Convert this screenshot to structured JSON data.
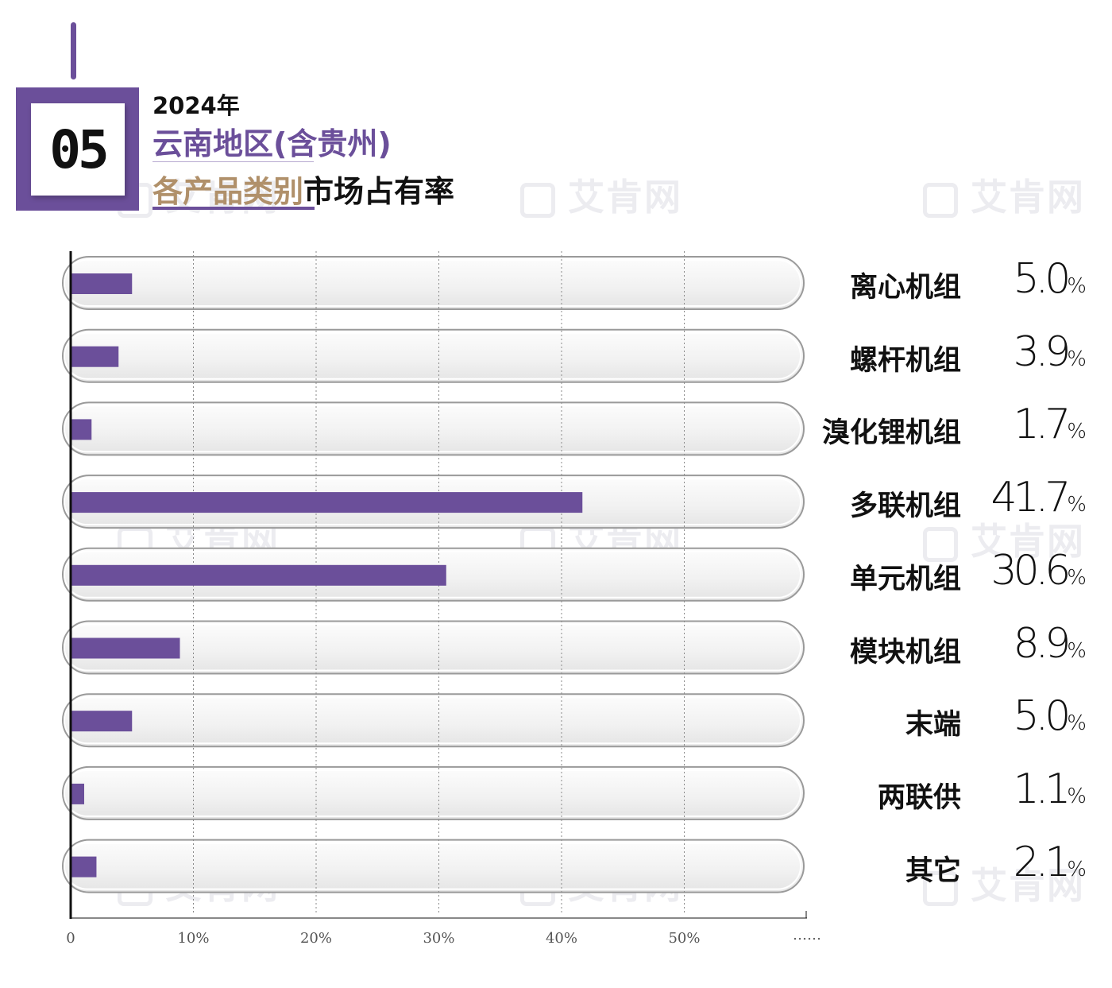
{
  "header": {
    "badge_number": "05",
    "year": "2024年",
    "region": "云南地区(含贵州)",
    "subtitle_highlight": "各产品类别",
    "subtitle_rest": "市场占有率"
  },
  "watermark": "艾肯网",
  "colors": {
    "accent": "#6b4f9a",
    "highlight": "#b0906a",
    "track": "#f0f0f0"
  },
  "chart_data": {
    "type": "bar",
    "orientation": "horizontal",
    "title": "2024年云南地区(含贵州)各产品类别市场占有率",
    "categories": [
      "离心机组",
      "螺杆机组",
      "溴化锂机组",
      "多联机组",
      "单元机组",
      "模块机组",
      "末端",
      "两联供",
      "其它"
    ],
    "values": [
      5.0,
      3.9,
      1.7,
      41.7,
      30.6,
      8.9,
      5.0,
      1.1,
      2.1
    ],
    "value_labels": [
      "5.0",
      "3.9",
      "1.7",
      "41.7",
      "30.6",
      "8.9",
      "5.0",
      "1.1",
      "2.1"
    ],
    "unit": "%",
    "xlim": [
      0,
      60
    ],
    "xticks": [
      0,
      10,
      20,
      30,
      40,
      50
    ],
    "xtick_labels": [
      "0",
      "10%",
      "20%",
      "30%",
      "40%",
      "50%"
    ],
    "xtick_continuation": "……",
    "grid": true
  }
}
